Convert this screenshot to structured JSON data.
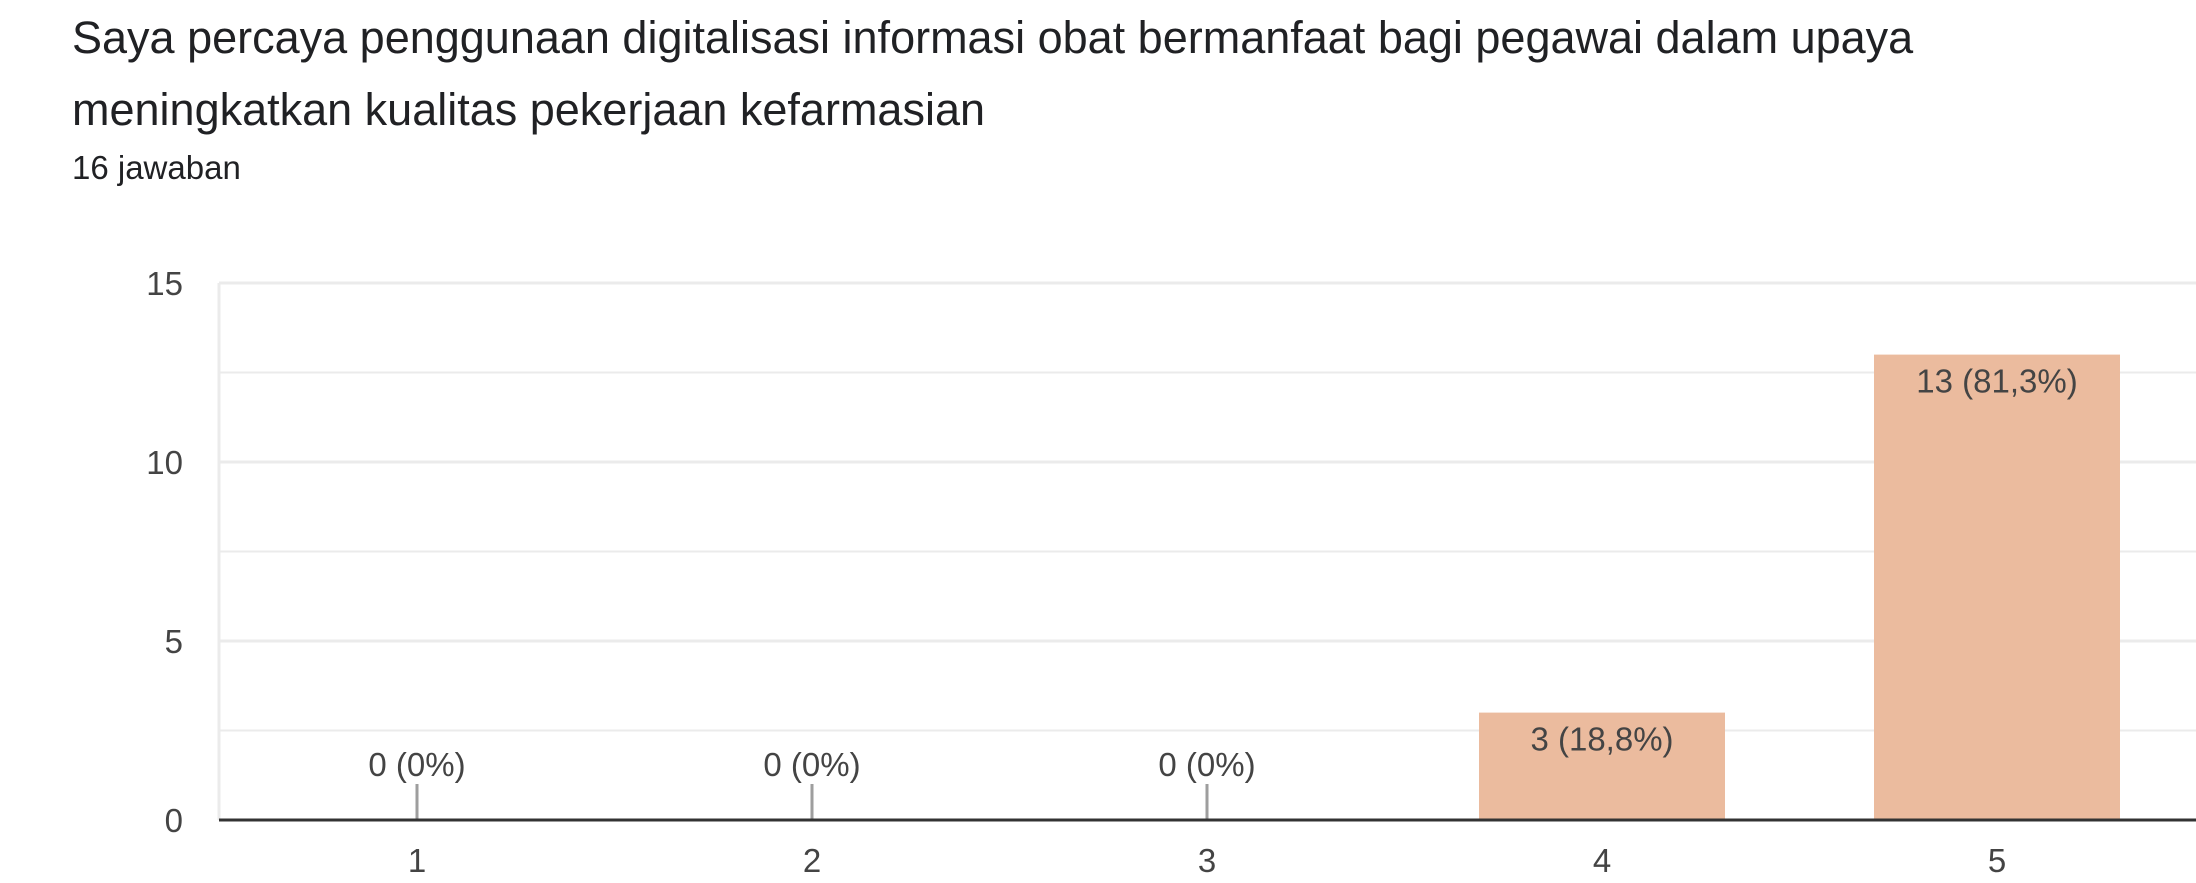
{
  "question": {
    "title": "Saya percaya penggunaan digitalisasi informasi obat bermanfaat bagi pegawai dalam upaya meningkatkan kualitas pekerjaan kefarmasian",
    "response_count": "16 jawaban"
  },
  "colors": {
    "bar": "#ebbb9e",
    "grid": "#ebebeb",
    "axis": "#333333",
    "zero_tick": "#9e9e9e"
  },
  "chart_data": {
    "type": "bar",
    "title": "Saya percaya penggunaan digitalisasi informasi obat bermanfaat bagi pegawai dalam upaya meningkatkan kualitas pekerjaan kefarmasian",
    "xlabel": "",
    "ylabel": "",
    "categories": [
      "1",
      "2",
      "3",
      "4",
      "5"
    ],
    "values": [
      0,
      0,
      0,
      3,
      13
    ],
    "data_labels": [
      "0 (0%)",
      "0 (0%)",
      "0 (0%)",
      "3 (18,8%)",
      "13 (81,3%)"
    ],
    "y_ticks": [
      "0",
      "5",
      "10",
      "15"
    ],
    "ylim": [
      0,
      15
    ],
    "grid": true,
    "legend": "none"
  }
}
